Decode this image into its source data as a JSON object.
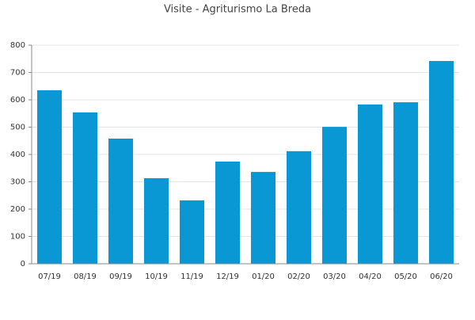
{
  "chart_data": {
    "type": "bar",
    "title": "Visite - Agriturismo La Breda",
    "categories": [
      "07/19",
      "08/19",
      "09/19",
      "10/19",
      "11/19",
      "12/19",
      "01/20",
      "02/20",
      "03/20",
      "04/20",
      "05/20",
      "06/20"
    ],
    "values": [
      635,
      554,
      458,
      313,
      232,
      374,
      336,
      412,
      501,
      583,
      591,
      742
    ],
    "color": "#0a98d4",
    "ylim": [
      0,
      800
    ],
    "yticks": [
      0,
      100,
      200,
      300,
      400,
      500,
      600,
      700,
      800
    ],
    "grid": true
  }
}
